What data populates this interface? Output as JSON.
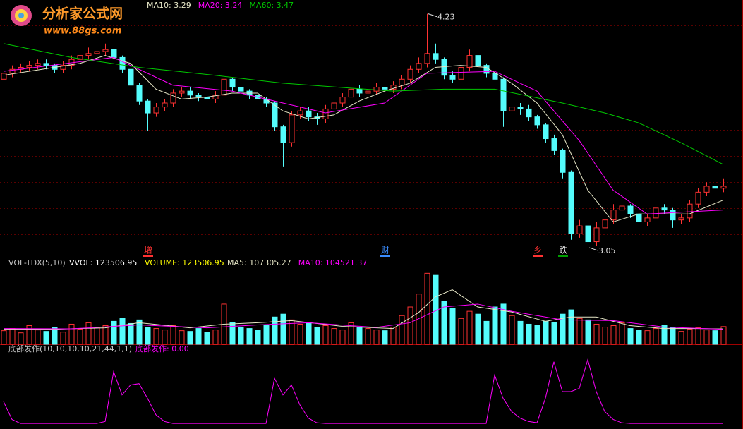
{
  "watermark": {
    "title": "分析家公式网",
    "url": "www.88gs.com"
  },
  "chart_data": [
    {
      "type": "candlestick",
      "open": [
        3.9,
        3.93,
        3.95,
        3.96,
        3.97,
        3.98,
        3.97,
        3.95,
        3.97,
        4.0,
        4.02,
        4.03,
        4.04,
        4.05,
        4.01,
        3.95,
        3.87,
        3.79,
        3.73,
        3.76,
        3.78,
        3.83,
        3.84,
        3.82,
        3.81,
        3.8,
        3.82,
        3.9,
        3.86,
        3.84,
        3.82,
        3.8,
        3.78,
        3.66,
        3.58,
        3.72,
        3.74,
        3.71,
        3.7,
        3.75,
        3.78,
        3.81,
        3.85,
        3.83,
        3.84,
        3.86,
        3.85,
        3.87,
        3.9,
        3.95,
        3.98,
        4.03,
        4.0,
        3.92,
        3.9,
        3.96,
        4.02,
        3.97,
        3.93,
        3.9,
        3.74,
        3.76,
        3.75,
        3.71,
        3.67,
        3.6,
        3.54,
        3.43,
        3.12,
        3.16,
        3.08,
        3.15,
        3.19,
        3.24,
        3.26,
        3.22,
        3.18,
        3.2,
        3.25,
        3.24,
        3.19,
        3.2,
        3.27,
        3.33,
        3.36,
        3.35
      ],
      "high": [
        3.95,
        3.97,
        3.98,
        3.99,
        4.0,
        4.0,
        3.98,
        3.99,
        4.02,
        4.05,
        4.06,
        4.07,
        4.08,
        4.06,
        4.02,
        3.96,
        3.88,
        3.8,
        3.78,
        3.8,
        3.85,
        3.86,
        3.86,
        3.83,
        3.83,
        3.84,
        3.96,
        3.91,
        3.87,
        3.85,
        3.83,
        3.81,
        3.79,
        3.67,
        3.74,
        3.76,
        3.76,
        3.73,
        3.77,
        3.8,
        3.83,
        3.87,
        3.87,
        3.86,
        3.88,
        3.88,
        3.89,
        3.92,
        3.97,
        4.01,
        4.23,
        4.08,
        4.01,
        3.94,
        3.98,
        4.05,
        4.03,
        3.98,
        3.95,
        3.91,
        3.79,
        3.78,
        3.77,
        3.72,
        3.68,
        3.62,
        3.55,
        3.44,
        3.19,
        3.18,
        3.18,
        3.21,
        3.27,
        3.29,
        3.27,
        3.23,
        3.22,
        3.27,
        3.27,
        3.25,
        3.22,
        3.29,
        3.35,
        3.38,
        3.38,
        3.4
      ],
      "low": [
        3.88,
        3.91,
        3.93,
        3.94,
        3.95,
        3.95,
        3.93,
        3.93,
        3.95,
        3.98,
        4.0,
        4.01,
        4.02,
        3.99,
        3.93,
        3.85,
        3.77,
        3.64,
        3.71,
        3.74,
        3.76,
        3.81,
        3.8,
        3.79,
        3.78,
        3.78,
        3.8,
        3.84,
        3.82,
        3.8,
        3.78,
        3.76,
        3.64,
        3.46,
        3.56,
        3.7,
        3.69,
        3.67,
        3.68,
        3.73,
        3.76,
        3.79,
        3.81,
        3.81,
        3.82,
        3.83,
        3.83,
        3.85,
        3.88,
        3.93,
        3.96,
        3.98,
        3.9,
        3.88,
        3.88,
        3.94,
        3.95,
        3.91,
        3.88,
        3.66,
        3.7,
        3.72,
        3.69,
        3.65,
        3.58,
        3.52,
        3.4,
        3.09,
        3.1,
        3.05,
        3.06,
        3.13,
        3.17,
        3.22,
        3.2,
        3.16,
        3.16,
        3.18,
        3.22,
        3.15,
        3.17,
        3.18,
        3.25,
        3.31,
        3.33,
        3.33
      ],
      "close": [
        3.93,
        3.95,
        3.96,
        3.97,
        3.98,
        3.97,
        3.95,
        3.97,
        4.0,
        4.02,
        4.03,
        4.04,
        4.05,
        4.01,
        3.95,
        3.87,
        3.79,
        3.73,
        3.76,
        3.78,
        3.83,
        3.84,
        3.82,
        3.81,
        3.8,
        3.82,
        3.9,
        3.86,
        3.84,
        3.82,
        3.8,
        3.78,
        3.66,
        3.58,
        3.72,
        3.74,
        3.71,
        3.7,
        3.75,
        3.78,
        3.81,
        3.85,
        3.83,
        3.84,
        3.86,
        3.85,
        3.87,
        3.9,
        3.95,
        3.98,
        4.03,
        4.0,
        3.92,
        3.9,
        3.96,
        4.02,
        3.97,
        3.93,
        3.9,
        3.74,
        3.76,
        3.75,
        3.71,
        3.67,
        3.6,
        3.54,
        3.43,
        3.12,
        3.16,
        3.08,
        3.15,
        3.19,
        3.24,
        3.26,
        3.22,
        3.18,
        3.2,
        3.25,
        3.24,
        3.19,
        3.2,
        3.27,
        3.33,
        3.36,
        3.35,
        3.36
      ],
      "up_color": "#ff3232",
      "down_color": "#54fcfc",
      "ylim": [
        3.0,
        4.3
      ],
      "series": [
        {
          "name": "MA10: 3.29",
          "color": "#e8e8c8",
          "x": [
            0,
            3,
            6,
            9,
            12,
            15,
            18,
            21,
            24,
            27,
            30,
            33,
            36,
            39,
            42,
            45,
            48,
            51,
            54,
            57,
            60,
            63,
            66,
            69,
            72,
            75,
            78,
            81,
            85
          ],
          "values": [
            3.92,
            3.94,
            3.96,
            3.98,
            4.02,
            3.98,
            3.85,
            3.8,
            3.81,
            3.83,
            3.83,
            3.74,
            3.7,
            3.72,
            3.79,
            3.84,
            3.88,
            3.96,
            3.97,
            3.96,
            3.88,
            3.78,
            3.62,
            3.34,
            3.18,
            3.22,
            3.22,
            3.22,
            3.29
          ]
        },
        {
          "name": "MA20: 3.24",
          "color": "#ff00ff",
          "x": [
            0,
            13,
            20,
            27,
            33,
            38,
            45,
            50,
            58,
            63,
            68,
            72,
            76,
            85
          ],
          "values": [
            3.94,
            4.01,
            3.87,
            3.84,
            3.78,
            3.73,
            3.78,
            3.93,
            3.94,
            3.84,
            3.59,
            3.34,
            3.22,
            3.24
          ]
        },
        {
          "name": "MA60: 3.47",
          "color": "#00c800",
          "x": [
            0,
            8,
            16,
            25,
            33,
            46,
            52,
            58,
            66,
            71,
            75,
            80,
            85
          ],
          "values": [
            4.08,
            4.01,
            3.96,
            3.92,
            3.88,
            3.84,
            3.85,
            3.85,
            3.78,
            3.73,
            3.68,
            3.58,
            3.47
          ]
        }
      ],
      "annotations": [
        {
          "text": "4.23",
          "index": 50,
          "value": 4.23
        },
        {
          "text": "3.05",
          "index": 69,
          "value": 3.05
        }
      ],
      "markers": [
        {
          "text": "增",
          "index": 17,
          "color": "#ff3232"
        },
        {
          "text": "财",
          "index": 45,
          "color": "#3a8cff"
        },
        {
          "text": "乡",
          "index": 63,
          "color": "#ff3232"
        },
        {
          "text": "跌",
          "index": 66,
          "color": "#00a000"
        }
      ]
    },
    {
      "type": "bar",
      "title": "VOL-TDX(5,10)",
      "subtitle": "VVOL: 123506.95",
      "name": "VOLUME: 123506.95",
      "values": [
        95000,
        110000,
        80000,
        130000,
        100000,
        90000,
        120000,
        85000,
        140000,
        105000,
        150000,
        115000,
        130000,
        160000,
        180000,
        145000,
        170000,
        120000,
        110000,
        100000,
        130000,
        95000,
        90000,
        110000,
        85000,
        100000,
        280000,
        150000,
        120000,
        110000,
        100000,
        130000,
        190000,
        210000,
        170000,
        140000,
        150000,
        120000,
        130000,
        110000,
        100000,
        150000,
        120000,
        110000,
        100000,
        95000,
        120000,
        200000,
        260000,
        350000,
        494000,
        480000,
        300000,
        250000,
        180000,
        230000,
        210000,
        160000,
        260000,
        280000,
        200000,
        160000,
        140000,
        130000,
        160000,
        150000,
        210000,
        240000,
        180000,
        170000,
        140000,
        120000,
        130000,
        150000,
        110000,
        100000,
        95000,
        110000,
        130000,
        120000,
        90000,
        105000,
        115000,
        100000,
        95000,
        123506.95
      ],
      "ylim": [
        0,
        530000
      ],
      "series": [
        {
          "name": "MA5: 107305.27",
          "color": "#e8e8c8",
          "x": [
            0,
            6,
            12,
            16,
            22,
            26,
            30,
            34,
            40,
            46,
            49,
            51,
            53,
            56,
            60,
            64,
            67,
            70,
            74,
            78,
            82,
            85
          ],
          "values": [
            105000,
            105000,
            115000,
            150000,
            115000,
            140000,
            150000,
            165000,
            125000,
            110000,
            220000,
            330000,
            380000,
            260000,
            225000,
            160000,
            190000,
            190000,
            130000,
            110000,
            110000,
            107305.27
          ]
        },
        {
          "name": "MA10: 104521.37",
          "color": "#ff00ff",
          "x": [
            0,
            8,
            16,
            24,
            30,
            36,
            44,
            48,
            52,
            56,
            60,
            66,
            72,
            78,
            85
          ],
          "values": [
            110000,
            108000,
            135000,
            115000,
            135000,
            150000,
            118000,
            150000,
            260000,
            280000,
            230000,
            170000,
            165000,
            120000,
            104521.37
          ]
        }
      ]
    },
    {
      "type": "line",
      "title": "底部发作(10,10,10,10,21,44,1,1)",
      "ylim": [
        0,
        100
      ],
      "series": [
        {
          "name": "底部发作: 0.00",
          "color": "#ff00ff",
          "values": [
            35,
            8,
            2,
            2,
            2,
            2,
            2,
            2,
            2,
            2,
            2,
            2,
            5,
            80,
            45,
            60,
            62,
            40,
            15,
            5,
            2,
            2,
            2,
            2,
            2,
            2,
            2,
            2,
            2,
            2,
            2,
            2,
            70,
            45,
            60,
            30,
            10,
            3,
            2,
            2,
            2,
            2,
            2,
            2,
            2,
            2,
            2,
            2,
            2,
            2,
            2,
            2,
            2,
            2,
            2,
            2,
            2,
            2,
            75,
            40,
            20,
            10,
            5,
            3,
            40,
            95,
            50,
            50,
            55,
            98,
            50,
            20,
            8,
            3,
            2,
            2,
            2,
            2,
            2,
            2,
            2,
            2,
            2,
            2,
            2,
            2
          ]
        }
      ]
    }
  ]
}
